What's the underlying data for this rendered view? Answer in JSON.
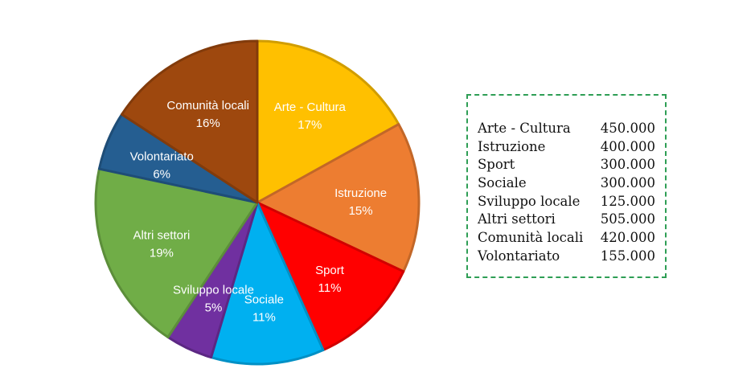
{
  "chart_data": {
    "type": "pie",
    "slices": [
      {
        "label": "Arte - Cultura",
        "percent": "17%",
        "value": 450000,
        "color": "#FFC000"
      },
      {
        "label": "Istruzione",
        "percent": "15%",
        "value": 400000,
        "color": "#ED7D31"
      },
      {
        "label": "Sport",
        "percent": "11%",
        "value": 300000,
        "color": "#FF0000"
      },
      {
        "label": "Sociale",
        "percent": "11%",
        "value": 300000,
        "color": "#00B0F0"
      },
      {
        "label": "Sviluppo locale",
        "percent": "5%",
        "value": 125000,
        "color": "#7030A0"
      },
      {
        "label": "Altri settori",
        "percent": "19%",
        "value": 505000,
        "color": "#70AD47"
      },
      {
        "label": "Volontariato",
        "percent": "6%",
        "value": 155000,
        "color": "#255E91"
      },
      {
        "label": "Comunità locali",
        "percent": "16%",
        "value": 420000,
        "color": "#9E480E"
      }
    ],
    "start_angle": "12 o'clock, clockwise"
  },
  "legend": {
    "rows": [
      {
        "label": "Arte - Cultura",
        "value": "450.000"
      },
      {
        "label": "Istruzione",
        "value": "400.000"
      },
      {
        "label": "Sport",
        "value": "300.000"
      },
      {
        "label": "Sociale",
        "value": "300.000"
      },
      {
        "label": "Sviluppo locale",
        "value": "125.000"
      },
      {
        "label": "Altri settori",
        "value": "505.000"
      },
      {
        "label": "Comunità locali",
        "value": "420.000"
      },
      {
        "label": "Volontariato",
        "value": "155.000"
      }
    ]
  }
}
